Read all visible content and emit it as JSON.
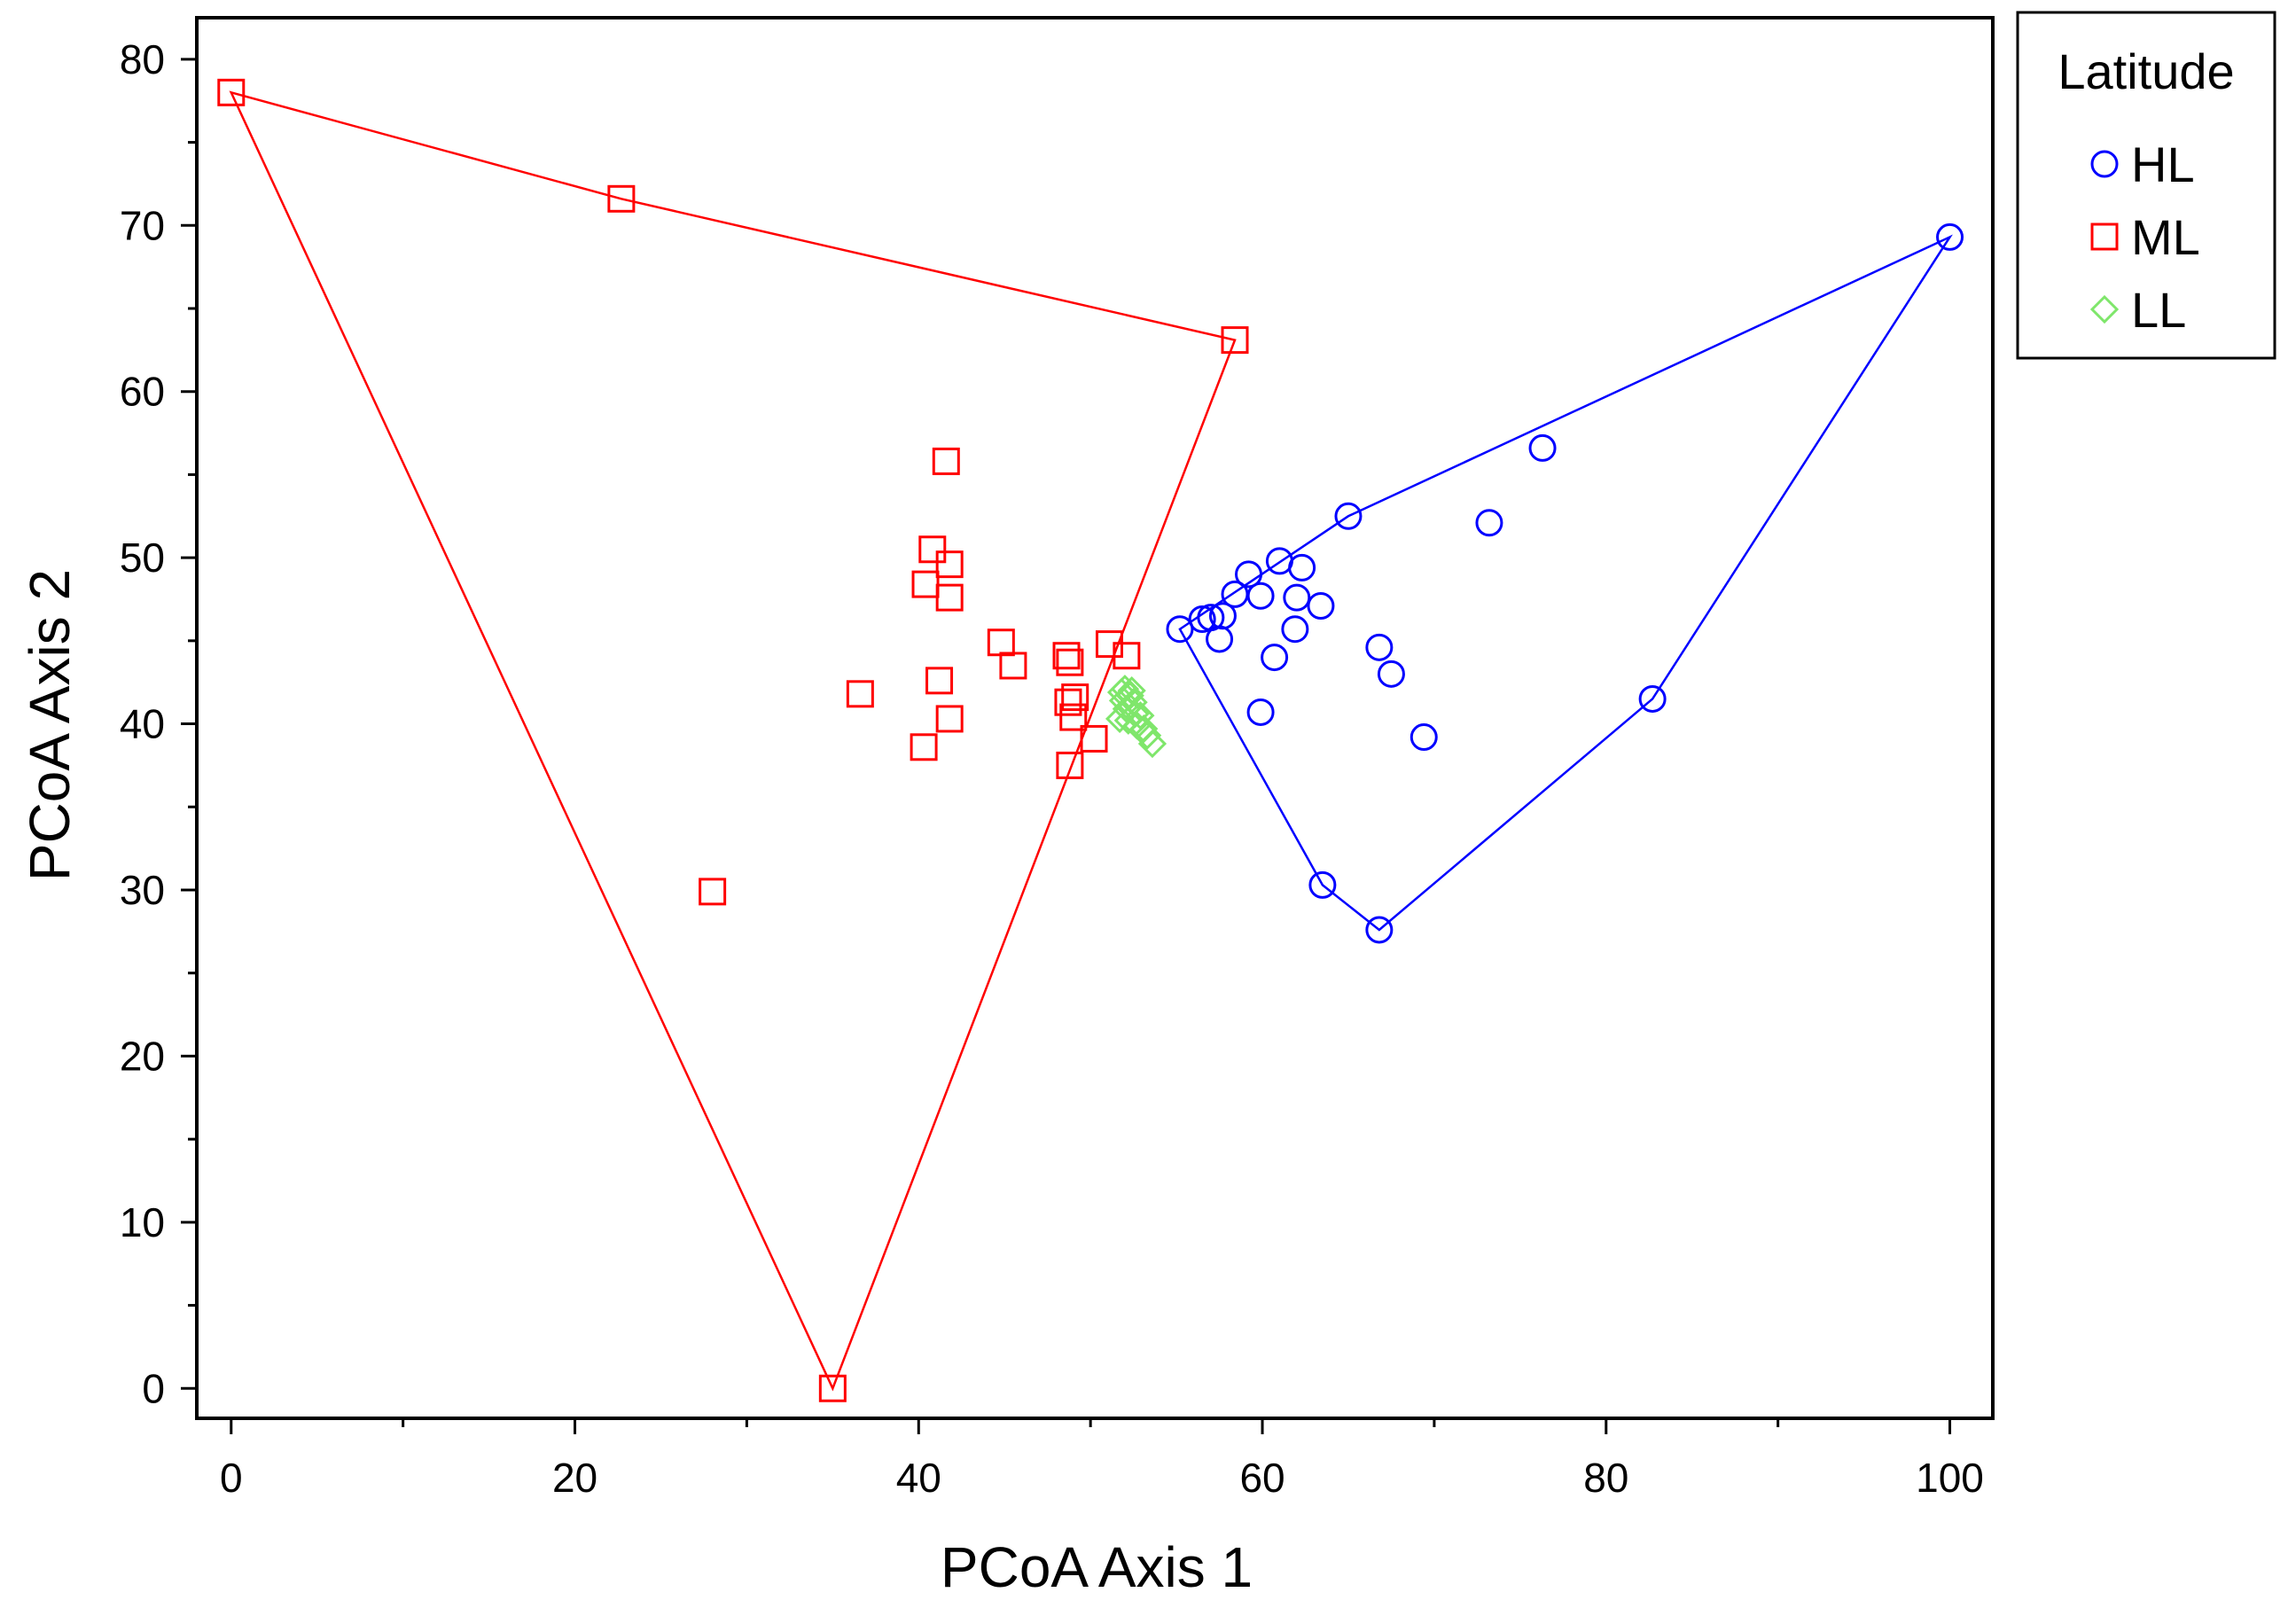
{
  "chart_data": {
    "type": "scatter",
    "title": "",
    "xlabel": "PCoA Axis 1",
    "ylabel": "PCoA Axis 2",
    "xlim": [
      -2,
      102.5
    ],
    "ylim": [
      -1.8,
      82.5
    ],
    "x_ticks": [
      0,
      20,
      40,
      60,
      80,
      100
    ],
    "y_ticks": [
      0,
      10,
      20,
      30,
      40,
      50,
      60,
      70,
      80
    ],
    "x_tick_labels": [
      "0",
      "20",
      "40",
      "60",
      "80",
      "100"
    ],
    "y_tick_labels": [
      "0",
      "10",
      "20",
      "30",
      "40",
      "50",
      "60",
      "70",
      "80"
    ],
    "grid": false,
    "legend": {
      "title": "Latitude",
      "placement": "outside-top-right"
    },
    "series": [
      {
        "name": "HL",
        "marker": "circle",
        "color": "#0000ff",
        "points": [
          [
            55.2,
            45.7
          ],
          [
            56.5,
            46.3
          ],
          [
            57.0,
            46.4
          ],
          [
            57.7,
            46.5
          ],
          [
            57.5,
            45.1
          ],
          [
            58.4,
            47.8
          ],
          [
            59.2,
            49.0
          ],
          [
            59.9,
            47.7
          ],
          [
            61.0,
            49.8
          ],
          [
            62.3,
            49.4
          ],
          [
            62.0,
            47.6
          ],
          [
            63.4,
            47.1
          ],
          [
            61.9,
            45.7
          ],
          [
            60.7,
            44.0
          ],
          [
            59.9,
            40.7
          ],
          [
            65.0,
            52.5
          ],
          [
            66.8,
            44.6
          ],
          [
            67.5,
            43.0
          ],
          [
            69.4,
            39.2
          ],
          [
            73.2,
            52.1
          ],
          [
            76.3,
            56.6
          ],
          [
            82.7,
            41.5
          ],
          [
            100.0,
            69.3
          ],
          [
            63.5,
            30.3
          ],
          [
            66.8,
            27.6
          ]
        ],
        "hull": [
          [
            55.2,
            45.7
          ],
          [
            65.0,
            52.5
          ],
          [
            100.0,
            69.3
          ],
          [
            82.7,
            41.5
          ],
          [
            66.8,
            27.6
          ],
          [
            63.5,
            30.3
          ]
        ]
      },
      {
        "name": "ML",
        "marker": "square",
        "color": "#ff0000",
        "points": [
          [
            0.0,
            78.0
          ],
          [
            22.7,
            71.6
          ],
          [
            58.4,
            63.1
          ],
          [
            35.0,
            0.0
          ],
          [
            28.0,
            29.9
          ],
          [
            41.6,
            55.8
          ],
          [
            40.8,
            50.5
          ],
          [
            41.8,
            49.6
          ],
          [
            40.4,
            48.4
          ],
          [
            41.8,
            47.6
          ],
          [
            44.8,
            44.9
          ],
          [
            45.5,
            43.5
          ],
          [
            36.6,
            41.8
          ],
          [
            41.2,
            42.6
          ],
          [
            41.8,
            40.3
          ],
          [
            40.3,
            38.6
          ],
          [
            48.6,
            44.1
          ],
          [
            48.8,
            43.7
          ],
          [
            51.1,
            44.8
          ],
          [
            52.1,
            44.1
          ],
          [
            48.7,
            41.3
          ],
          [
            49.1,
            41.6
          ],
          [
            49.0,
            40.4
          ],
          [
            50.2,
            39.1
          ],
          [
            48.8,
            37.5
          ]
        ],
        "hull": [
          [
            0.0,
            78.0
          ],
          [
            22.7,
            71.6
          ],
          [
            58.4,
            63.1
          ],
          [
            35.0,
            0.0
          ]
        ]
      },
      {
        "name": "LL",
        "marker": "diamond",
        "color": "#7fe66b",
        "points": [
          [
            51.8,
            41.9
          ],
          [
            52.0,
            42.1
          ],
          [
            52.3,
            41.7
          ],
          [
            51.9,
            41.4
          ],
          [
            52.5,
            41.3
          ],
          [
            52.1,
            40.9
          ],
          [
            52.6,
            40.6
          ],
          [
            52.2,
            40.2
          ],
          [
            52.9,
            40.5
          ],
          [
            52.7,
            39.9
          ],
          [
            53.1,
            39.7
          ],
          [
            53.3,
            39.3
          ],
          [
            53.6,
            38.8
          ],
          [
            51.7,
            40.3
          ],
          [
            52.4,
            42.0
          ]
        ],
        "hull": []
      }
    ]
  }
}
